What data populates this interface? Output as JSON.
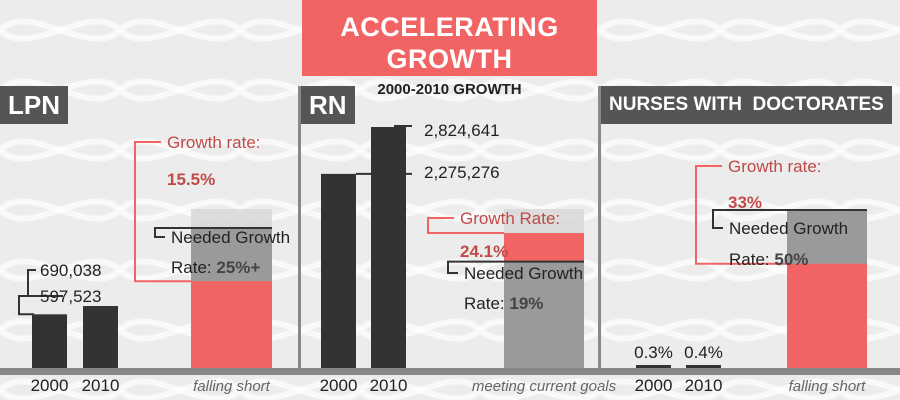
{
  "header": {
    "title": "ACCELERATING GROWTH",
    "subtitle": "2000-2010 GROWTH"
  },
  "colors": {
    "background": "#efefef",
    "bar_dark": "#333333",
    "accent": "#f26463",
    "goal_fill": "#d8d8d8",
    "gray_band": "#9a9a9a",
    "label_bg": "#555555",
    "accent_text": "#c04a48"
  },
  "panels": [
    {
      "label": "LPN"
    },
    {
      "label": "RN"
    },
    {
      "label": "NURSES WITH  DOCTORATES"
    }
  ],
  "chart_data": [
    {
      "type": "bar",
      "categories": [
        "2000",
        "2010"
      ],
      "values": [
        597523,
        690038
      ],
      "value_labels": [
        "597,523",
        "690,038"
      ],
      "growth": {
        "actual_label": "Growth rate:",
        "actual_value": "15.5%",
        "needed_label_line1": "Needed Growth",
        "needed_label_line2": "Rate: ",
        "needed_value": "25%+",
        "actual_pct": 15.5,
        "needed_pct": 25,
        "caption": "falling short"
      }
    },
    {
      "type": "bar",
      "categories": [
        "2000",
        "2010"
      ],
      "values": [
        2275276,
        2824641
      ],
      "value_labels": [
        "2,275,276",
        "2,824,641"
      ],
      "growth": {
        "actual_label": "Growth Rate:",
        "actual_value": "24.1%",
        "needed_label_line1": "Needed Growth",
        "needed_label_line2": "Rate: ",
        "needed_value": "19%",
        "actual_pct": 24.1,
        "needed_pct": 19,
        "caption": "meeting current goals"
      }
    },
    {
      "type": "bar",
      "categories": [
        "2000",
        "2010"
      ],
      "values": [
        0.3,
        0.4
      ],
      "value_labels": [
        "0.3%",
        "0.4%"
      ],
      "growth": {
        "actual_label": "Growth rate:",
        "actual_value": "33%",
        "needed_label_line1": "Needed Growth",
        "needed_label_line2": "Rate: ",
        "needed_value": "50%",
        "actual_pct": 33,
        "needed_pct": 50,
        "caption": "falling short"
      }
    }
  ]
}
